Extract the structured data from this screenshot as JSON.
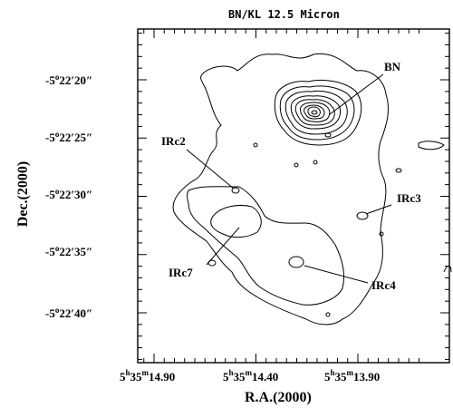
{
  "figure": {
    "title": "BN/KL 12.5 Micron",
    "xlabel": "R.A.(2000)",
    "ylabel": "Dec.(2000)",
    "y_ticks": [
      {
        "deg": "-5",
        "arcmin": "22",
        "arcsec": "20″",
        "value": 20
      },
      {
        "deg": "-5",
        "arcmin": "22",
        "arcsec": "25″",
        "value": 25
      },
      {
        "deg": "-5",
        "arcmin": "22",
        "arcsec": "30″",
        "value": 30
      },
      {
        "deg": "-5",
        "arcmin": "22",
        "arcsec": "35″",
        "value": 35
      },
      {
        "deg": "-5",
        "arcmin": "22",
        "arcsec": "40″",
        "value": 40
      }
    ],
    "x_ticks": [
      {
        "h": "5",
        "m": "35",
        "s": "14.90",
        "value": 14.9
      },
      {
        "h": "5",
        "m": "35",
        "s": "14.40",
        "value": 14.4
      },
      {
        "h": "5",
        "m": "35",
        "s": "13.90",
        "value": 13.9
      }
    ],
    "labels": [
      "BN",
      "IRc2",
      "IRc3",
      "IRc7",
      "IRc4"
    ]
  }
}
